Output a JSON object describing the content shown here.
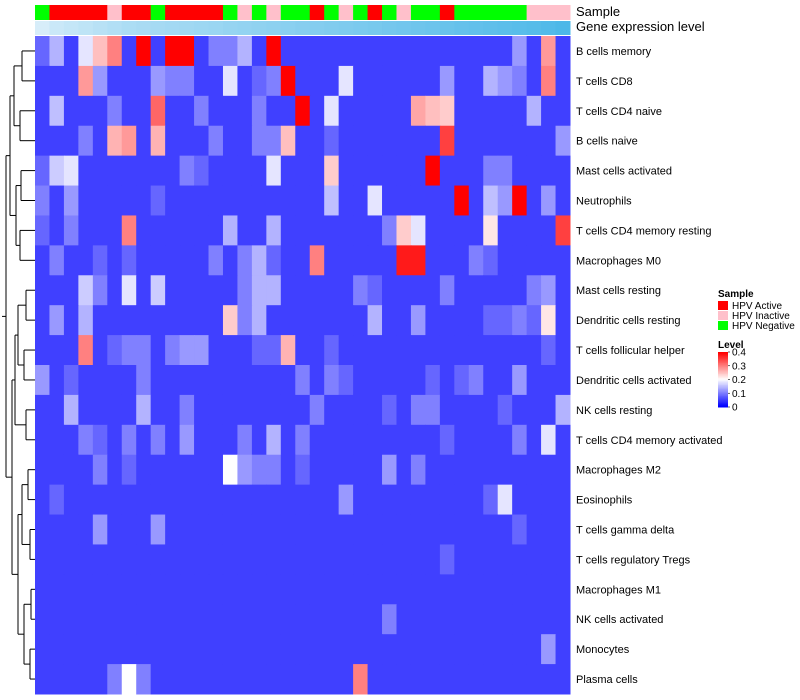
{
  "chart_data": {
    "type": "heatmap",
    "annotation_tracks": [
      "Sample",
      "Gene expression level"
    ],
    "rows": [
      "B cells memory",
      "T cells CD8",
      "T cells CD4 naive",
      "B cells naive",
      "Mast cells activated",
      "Neutrophils",
      "T cells CD4 memory resting",
      "Macrophages M0",
      "Mast cells resting",
      "Dendritic cells resting",
      "T cells follicular helper",
      "Dendritic cells activated",
      "NK cells resting",
      "T cells CD4 memory activated",
      "Macrophages M2",
      "Eosinophils",
      "T cells gamma delta",
      "T cells regulatory  Tregs",
      "Macrophages M1",
      "NK cells activated",
      "Monocytes",
      "Plasma cells"
    ],
    "sample_groups": [
      "HPV Negative",
      "HPV Active",
      "HPV Active",
      "HPV Active",
      "HPV Active",
      "HPV Inactive",
      "HPV Active",
      "HPV Active",
      "HPV Negative",
      "HPV Active",
      "HPV Active",
      "HPV Active",
      "HPV Active",
      "HPV Negative",
      "HPV Inactive",
      "HPV Negative",
      "HPV Inactive",
      "HPV Negative",
      "HPV Negative",
      "HPV Active",
      "HPV Negative",
      "HPV Inactive",
      "HPV Negative",
      "HPV Active",
      "HPV Negative",
      "HPV Inactive",
      "HPV Negative",
      "HPV Negative",
      "HPV Active",
      "HPV Negative",
      "HPV Negative",
      "HPV Negative",
      "HPV Negative",
      "HPV Negative",
      "HPV Inactive",
      "HPV Inactive",
      "HPV Inactive"
    ],
    "expression_level": [
      0.1,
      0.18,
      0.22,
      0.26,
      0.3,
      0.34,
      0.38,
      0.4,
      0.42,
      0.44,
      0.46,
      0.48,
      0.5,
      0.52,
      0.54,
      0.56,
      0.58,
      0.6,
      0.62,
      0.64,
      0.66,
      0.68,
      0.7,
      0.72,
      0.74,
      0.76,
      0.78,
      0.8,
      0.82,
      0.84,
      0.86,
      0.88,
      0.9,
      0.92,
      0.94,
      0.97,
      1.0
    ],
    "values": [
      [
        0.08,
        0.14,
        0.05,
        0.18,
        0.25,
        0.3,
        0.05,
        0.4,
        0.05,
        0.4,
        0.4,
        0.05,
        0.1,
        0.1,
        0.14,
        0.05,
        0.4,
        0.05,
        0.05,
        0.05,
        0.05,
        0.05,
        0.05,
        0.05,
        0.05,
        0.05,
        0.05,
        0.05,
        0.05,
        0.05,
        0.05,
        0.05,
        0.05,
        0.12,
        0.05,
        0.28,
        0.05
      ],
      [
        0.05,
        0.05,
        0.05,
        0.28,
        0.12,
        0.05,
        0.05,
        0.05,
        0.12,
        0.1,
        0.1,
        0.05,
        0.05,
        0.18,
        0.05,
        0.08,
        0.1,
        0.4,
        0.05,
        0.05,
        0.05,
        0.18,
        0.05,
        0.05,
        0.05,
        0.05,
        0.05,
        0.05,
        0.12,
        0.05,
        0.05,
        0.14,
        0.12,
        0.1,
        0.05,
        0.3,
        0.05
      ],
      [
        0.05,
        0.15,
        0.05,
        0.05,
        0.05,
        0.1,
        0.05,
        0.05,
        0.32,
        0.05,
        0.05,
        0.1,
        0.05,
        0.05,
        0.05,
        0.1,
        0.05,
        0.05,
        0.4,
        0.05,
        0.18,
        0.05,
        0.05,
        0.05,
        0.05,
        0.05,
        0.27,
        0.25,
        0.24,
        0.05,
        0.05,
        0.05,
        0.05,
        0.05,
        0.14,
        0.05,
        0.05
      ],
      [
        0.05,
        0.05,
        0.05,
        0.1,
        0.05,
        0.26,
        0.28,
        0.05,
        0.26,
        0.05,
        0.05,
        0.05,
        0.1,
        0.05,
        0.05,
        0.1,
        0.1,
        0.25,
        0.05,
        0.05,
        0.08,
        0.05,
        0.05,
        0.05,
        0.05,
        0.05,
        0.05,
        0.05,
        0.35,
        0.05,
        0.05,
        0.05,
        0.05,
        0.05,
        0.05,
        0.05,
        0.12
      ],
      [
        0.08,
        0.16,
        0.18,
        0.05,
        0.05,
        0.05,
        0.05,
        0.05,
        0.05,
        0.05,
        0.1,
        0.08,
        0.05,
        0.05,
        0.05,
        0.05,
        0.18,
        0.05,
        0.05,
        0.05,
        0.24,
        0.05,
        0.05,
        0.05,
        0.05,
        0.05,
        0.05,
        0.4,
        0.05,
        0.05,
        0.05,
        0.1,
        0.1,
        0.05,
        0.05,
        0.05,
        0.05
      ],
      [
        0.1,
        0.05,
        0.12,
        0.05,
        0.05,
        0.05,
        0.05,
        0.05,
        0.08,
        0.05,
        0.05,
        0.05,
        0.05,
        0.05,
        0.05,
        0.05,
        0.05,
        0.05,
        0.05,
        0.05,
        0.15,
        0.05,
        0.05,
        0.18,
        0.05,
        0.05,
        0.05,
        0.05,
        0.05,
        0.4,
        0.05,
        0.15,
        0.12,
        0.4,
        0.05,
        0.12,
        0.05
      ],
      [
        0.08,
        0.05,
        0.1,
        0.05,
        0.05,
        0.05,
        0.3,
        0.05,
        0.05,
        0.05,
        0.05,
        0.05,
        0.05,
        0.14,
        0.05,
        0.05,
        0.14,
        0.05,
        0.05,
        0.05,
        0.05,
        0.05,
        0.05,
        0.05,
        0.1,
        0.24,
        0.18,
        0.05,
        0.05,
        0.05,
        0.05,
        0.22,
        0.05,
        0.05,
        0.05,
        0.05,
        0.35
      ],
      [
        0.05,
        0.1,
        0.05,
        0.05,
        0.08,
        0.05,
        0.08,
        0.05,
        0.05,
        0.05,
        0.05,
        0.05,
        0.1,
        0.05,
        0.1,
        0.14,
        0.08,
        0.05,
        0.05,
        0.3,
        0.05,
        0.05,
        0.05,
        0.05,
        0.05,
        0.38,
        0.38,
        0.05,
        0.05,
        0.05,
        0.1,
        0.08,
        0.05,
        0.05,
        0.05,
        0.05,
        0.05
      ],
      [
        0.05,
        0.05,
        0.05,
        0.16,
        0.1,
        0.05,
        0.18,
        0.05,
        0.16,
        0.05,
        0.05,
        0.05,
        0.05,
        0.05,
        0.1,
        0.14,
        0.14,
        0.05,
        0.05,
        0.05,
        0.05,
        0.05,
        0.1,
        0.08,
        0.05,
        0.05,
        0.05,
        0.05,
        0.1,
        0.05,
        0.05,
        0.05,
        0.05,
        0.05,
        0.1,
        0.12,
        0.05
      ],
      [
        0.05,
        0.12,
        0.05,
        0.14,
        0.05,
        0.05,
        0.05,
        0.05,
        0.05,
        0.05,
        0.05,
        0.05,
        0.05,
        0.24,
        0.1,
        0.14,
        0.05,
        0.05,
        0.05,
        0.05,
        0.05,
        0.05,
        0.05,
        0.14,
        0.05,
        0.05,
        0.12,
        0.05,
        0.05,
        0.05,
        0.05,
        0.08,
        0.08,
        0.1,
        0.08,
        0.22,
        0.05
      ],
      [
        0.05,
        0.05,
        0.05,
        0.3,
        0.05,
        0.08,
        0.1,
        0.1,
        0.05,
        0.1,
        0.12,
        0.12,
        0.05,
        0.05,
        0.05,
        0.08,
        0.08,
        0.26,
        0.05,
        0.05,
        0.08,
        0.05,
        0.05,
        0.05,
        0.05,
        0.05,
        0.05,
        0.05,
        0.05,
        0.05,
        0.05,
        0.05,
        0.05,
        0.05,
        0.05,
        0.08,
        0.05
      ],
      [
        0.12,
        0.05,
        0.08,
        0.05,
        0.05,
        0.05,
        0.05,
        0.1,
        0.05,
        0.05,
        0.05,
        0.05,
        0.05,
        0.05,
        0.05,
        0.05,
        0.05,
        0.05,
        0.1,
        0.05,
        0.1,
        0.08,
        0.05,
        0.05,
        0.05,
        0.05,
        0.05,
        0.08,
        0.05,
        0.08,
        0.1,
        0.05,
        0.05,
        0.12,
        0.05,
        0.05,
        0.05
      ],
      [
        0.05,
        0.05,
        0.14,
        0.05,
        0.05,
        0.05,
        0.05,
        0.14,
        0.05,
        0.05,
        0.1,
        0.05,
        0.05,
        0.05,
        0.05,
        0.05,
        0.05,
        0.05,
        0.05,
        0.1,
        0.05,
        0.05,
        0.05,
        0.05,
        0.08,
        0.05,
        0.1,
        0.1,
        0.05,
        0.05,
        0.05,
        0.05,
        0.08,
        0.05,
        0.05,
        0.05,
        0.14
      ],
      [
        0.05,
        0.05,
        0.05,
        0.1,
        0.08,
        0.05,
        0.1,
        0.05,
        0.1,
        0.05,
        0.12,
        0.05,
        0.05,
        0.05,
        0.1,
        0.05,
        0.14,
        0.05,
        0.1,
        0.05,
        0.05,
        0.05,
        0.05,
        0.05,
        0.05,
        0.05,
        0.05,
        0.05,
        0.08,
        0.05,
        0.05,
        0.05,
        0.05,
        0.1,
        0.05,
        0.18,
        0.05
      ],
      [
        0.05,
        0.05,
        0.05,
        0.05,
        0.1,
        0.05,
        0.08,
        0.05,
        0.05,
        0.05,
        0.05,
        0.05,
        0.05,
        0.2,
        0.12,
        0.1,
        0.1,
        0.05,
        0.08,
        0.05,
        0.05,
        0.05,
        0.05,
        0.05,
        0.12,
        0.05,
        0.1,
        0.05,
        0.05,
        0.05,
        0.05,
        0.05,
        0.05,
        0.05,
        0.05,
        0.05,
        0.05
      ],
      [
        0.05,
        0.08,
        0.05,
        0.05,
        0.05,
        0.05,
        0.05,
        0.05,
        0.05,
        0.05,
        0.05,
        0.05,
        0.05,
        0.05,
        0.05,
        0.05,
        0.05,
        0.05,
        0.05,
        0.05,
        0.05,
        0.12,
        0.05,
        0.05,
        0.05,
        0.05,
        0.05,
        0.05,
        0.05,
        0.05,
        0.05,
        0.08,
        0.18,
        0.05,
        0.05,
        0.05,
        0.05
      ],
      [
        0.05,
        0.05,
        0.05,
        0.05,
        0.12,
        0.05,
        0.05,
        0.05,
        0.12,
        0.05,
        0.05,
        0.05,
        0.05,
        0.05,
        0.05,
        0.05,
        0.05,
        0.05,
        0.05,
        0.05,
        0.05,
        0.05,
        0.05,
        0.05,
        0.05,
        0.05,
        0.05,
        0.05,
        0.05,
        0.05,
        0.05,
        0.05,
        0.05,
        0.08,
        0.05,
        0.05,
        0.05
      ],
      [
        0.05,
        0.05,
        0.05,
        0.05,
        0.05,
        0.05,
        0.05,
        0.05,
        0.05,
        0.05,
        0.05,
        0.05,
        0.05,
        0.05,
        0.05,
        0.05,
        0.05,
        0.05,
        0.05,
        0.05,
        0.05,
        0.05,
        0.05,
        0.05,
        0.05,
        0.05,
        0.05,
        0.05,
        0.08,
        0.05,
        0.05,
        0.05,
        0.05,
        0.05,
        0.05,
        0.05,
        0.05
      ],
      [
        0.05,
        0.05,
        0.05,
        0.05,
        0.05,
        0.05,
        0.05,
        0.05,
        0.05,
        0.05,
        0.05,
        0.05,
        0.05,
        0.05,
        0.05,
        0.05,
        0.05,
        0.05,
        0.05,
        0.05,
        0.05,
        0.05,
        0.05,
        0.05,
        0.05,
        0.05,
        0.05,
        0.05,
        0.05,
        0.05,
        0.05,
        0.05,
        0.05,
        0.05,
        0.05,
        0.05,
        0.05
      ],
      [
        0.05,
        0.05,
        0.05,
        0.05,
        0.05,
        0.05,
        0.05,
        0.05,
        0.05,
        0.05,
        0.05,
        0.05,
        0.05,
        0.05,
        0.05,
        0.05,
        0.05,
        0.05,
        0.05,
        0.05,
        0.05,
        0.05,
        0.05,
        0.05,
        0.1,
        0.05,
        0.05,
        0.05,
        0.05,
        0.05,
        0.05,
        0.05,
        0.05,
        0.05,
        0.05,
        0.05,
        0.05
      ],
      [
        0.05,
        0.05,
        0.05,
        0.05,
        0.05,
        0.05,
        0.05,
        0.05,
        0.05,
        0.05,
        0.05,
        0.05,
        0.05,
        0.05,
        0.05,
        0.05,
        0.05,
        0.05,
        0.05,
        0.05,
        0.05,
        0.05,
        0.05,
        0.05,
        0.05,
        0.05,
        0.05,
        0.05,
        0.05,
        0.05,
        0.05,
        0.05,
        0.05,
        0.05,
        0.05,
        0.12,
        0.05
      ],
      [
        0.05,
        0.05,
        0.05,
        0.05,
        0.05,
        0.1,
        0.2,
        0.1,
        0.05,
        0.05,
        0.05,
        0.05,
        0.05,
        0.05,
        0.05,
        0.05,
        0.05,
        0.05,
        0.05,
        0.05,
        0.05,
        0.05,
        0.3,
        0.05,
        0.05,
        0.05,
        0.05,
        0.05,
        0.05,
        0.05,
        0.05,
        0.05,
        0.05,
        0.05,
        0.05,
        0.05,
        0.05
      ]
    ],
    "legend": {
      "sample_title": "Sample",
      "sample_entries": [
        {
          "label": "HPV Active",
          "color": "#ff0000"
        },
        {
          "label": "HPV Inactive",
          "color": "#ffc0cb"
        },
        {
          "label": "HPV Negative",
          "color": "#00ff00"
        }
      ],
      "level_title": "Level",
      "level_ticks": [
        "0.4",
        "0.3",
        "0.2",
        "0.1",
        "0"
      ],
      "level_range": [
        0,
        0.4
      ]
    },
    "colorscale": {
      "low": "#0000ff",
      "mid": "#ffffff",
      "high": "#ff0000"
    },
    "expression_colorscale": {
      "low": "#e6f3fb",
      "high": "#4db8e8"
    },
    "row_dendrogram": true,
    "grid": false
  }
}
